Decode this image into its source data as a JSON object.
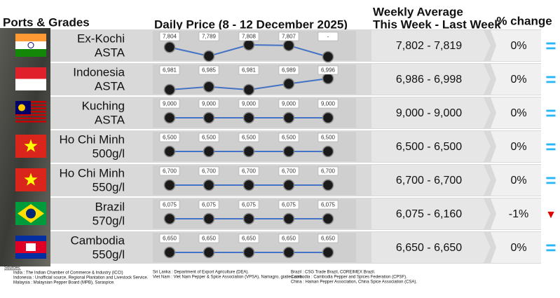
{
  "header": {
    "ports": "Ports & Grades",
    "daily": "Daily Price (8 - 12 December 2025)",
    "weekly_1": "Weekly Average",
    "weekly_2": "This Week - Last Week",
    "change": "% change"
  },
  "rows": [
    {
      "port": "Ex-Kochi",
      "grade": "ASTA",
      "prices": [
        7804,
        7789,
        7808,
        7807,
        null
      ],
      "price_labels": [
        "7,804",
        "7,789",
        "7,808",
        "7,807",
        "-"
      ],
      "weekly": "7,802 - 7,819",
      "change": "0%",
      "trend": "=",
      "trend_color": "#29b6f6"
    },
    {
      "port": "Indonesia",
      "grade": "ASTA",
      "prices": [
        6981,
        6985,
        6981,
        6989,
        6996
      ],
      "price_labels": [
        "6,981",
        "6,985",
        "6,981",
        "6,989",
        "6,996"
      ],
      "weekly": "6,986 - 6,998",
      "change": "0%",
      "trend": "=",
      "trend_color": "#29b6f6"
    },
    {
      "port": "Kuching",
      "grade": "ASTA",
      "prices": [
        9000,
        9000,
        9000,
        9000,
        9000
      ],
      "price_labels": [
        "9,000",
        "9,000",
        "9,000",
        "9,000",
        "9,000"
      ],
      "weekly": "9,000 - 9,000",
      "change": "0%",
      "trend": "=",
      "trend_color": "#29b6f6"
    },
    {
      "port": "Ho Chi Minh",
      "grade": "500g/l",
      "prices": [
        6500,
        6500,
        6500,
        6500,
        6500
      ],
      "price_labels": [
        "6,500",
        "6,500",
        "6,500",
        "6,500",
        "6,500"
      ],
      "weekly": "6,500 - 6,500",
      "change": "0%",
      "trend": "=",
      "trend_color": "#29b6f6"
    },
    {
      "port": "Ho Chi Minh",
      "grade": "550g/l",
      "prices": [
        6700,
        6700,
        6700,
        6700,
        6700
      ],
      "price_labels": [
        "6,700",
        "6,700",
        "6,700",
        "6,700",
        "6,700"
      ],
      "weekly": "6,700 - 6,700",
      "change": "0%",
      "trend": "=",
      "trend_color": "#29b6f6"
    },
    {
      "port": "Brazil",
      "grade": "570g/l",
      "prices": [
        6075,
        6075,
        6075,
        6075,
        6075
      ],
      "price_labels": [
        "6,075",
        "6,075",
        "6,075",
        "6,075",
        "6,075"
      ],
      "weekly": "6,075 - 6,160",
      "change": "-1%",
      "trend": "▼",
      "trend_color": "#e00000"
    },
    {
      "port": "Cambodia",
      "grade": "550g/l",
      "prices": [
        6650,
        6650,
        6650,
        6650,
        6650
      ],
      "price_labels": [
        "6,650",
        "6,650",
        "6,650",
        "6,650",
        "6,650"
      ],
      "weekly": "6,650 - 6,650",
      "change": "0%",
      "trend": "=",
      "trend_color": "#29b6f6"
    }
  ],
  "sources": [
    [
      "Sources:",
      "India : The Indian Chamber of Commerce & Industry (ICCI)",
      "Indonesia : Unofficial source, Regional Plantation and Livestock Service.",
      "Malaysia : Malaysian Pepper Board (MPB), Saraspice."
    ],
    [
      "Sri Lanka : Department of Export Agriculture (DEA).",
      "Viet Nam : Viet Nam Pepper & Spice Association (VPSA), Namagro, giatieu.com."
    ],
    [
      "Brazil : CSG Trade Brazil, COREIMEX Brazil.",
      "Cambodia : Cambodia Pepper and Spices Federation (CPSF).",
      "China : Hainan Pepper Association, China Spice Association (CSA)."
    ]
  ]
}
